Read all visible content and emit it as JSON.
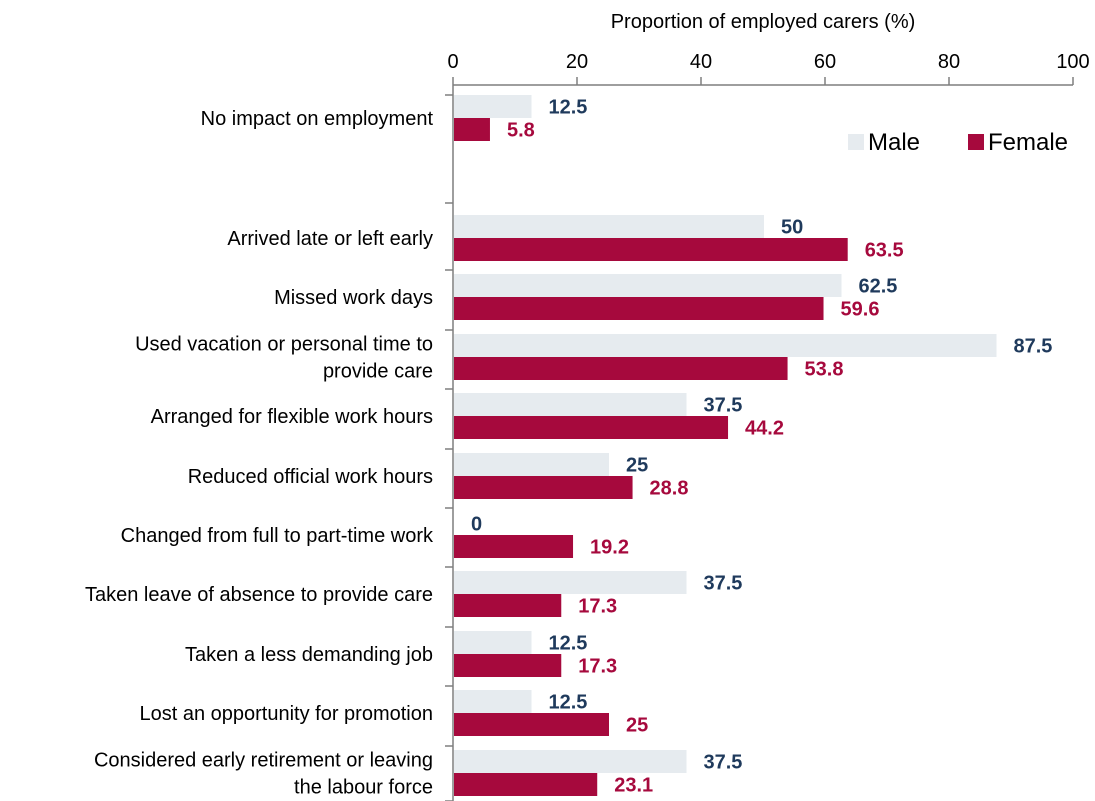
{
  "chart_data": {
    "type": "bar",
    "orientation": "horizontal",
    "title": "",
    "xlabel": "Proportion of employed carers (%)",
    "ylabel": "",
    "xlim": [
      0,
      100
    ],
    "xticks": [
      0,
      20,
      40,
      60,
      80,
      100
    ],
    "xaxis_position": "top",
    "grid": false,
    "legend_position": "top-right",
    "categories": [
      [
        "No impact on employment"
      ],
      [
        "Arrived late or left early"
      ],
      [
        "Missed work days"
      ],
      [
        "Used vacation or personal time to",
        "provide care"
      ],
      [
        "Arranged for flexible work hours"
      ],
      [
        "Reduced official work hours"
      ],
      [
        "Changed from full to part-time work"
      ],
      [
        "Taken leave of absence to provide care"
      ],
      [
        "Taken a less demanding job"
      ],
      [
        "Lost an opportunity for promotion"
      ],
      [
        "Considered early retirement or leaving",
        "the labour force"
      ]
    ],
    "series": [
      {
        "name": "Male",
        "color": "#e6ebef",
        "label_color": "#1f3a5c",
        "values": [
          12.5,
          50,
          62.5,
          87.5,
          37.5,
          25,
          0,
          37.5,
          12.5,
          12.5,
          37.5
        ]
      },
      {
        "name": "Female",
        "color": "#a6093d",
        "label_color": "#a6093d",
        "values": [
          5.8,
          63.5,
          59.6,
          53.8,
          44.2,
          28.8,
          19.2,
          17.3,
          17.3,
          25,
          23.1
        ]
      }
    ]
  }
}
